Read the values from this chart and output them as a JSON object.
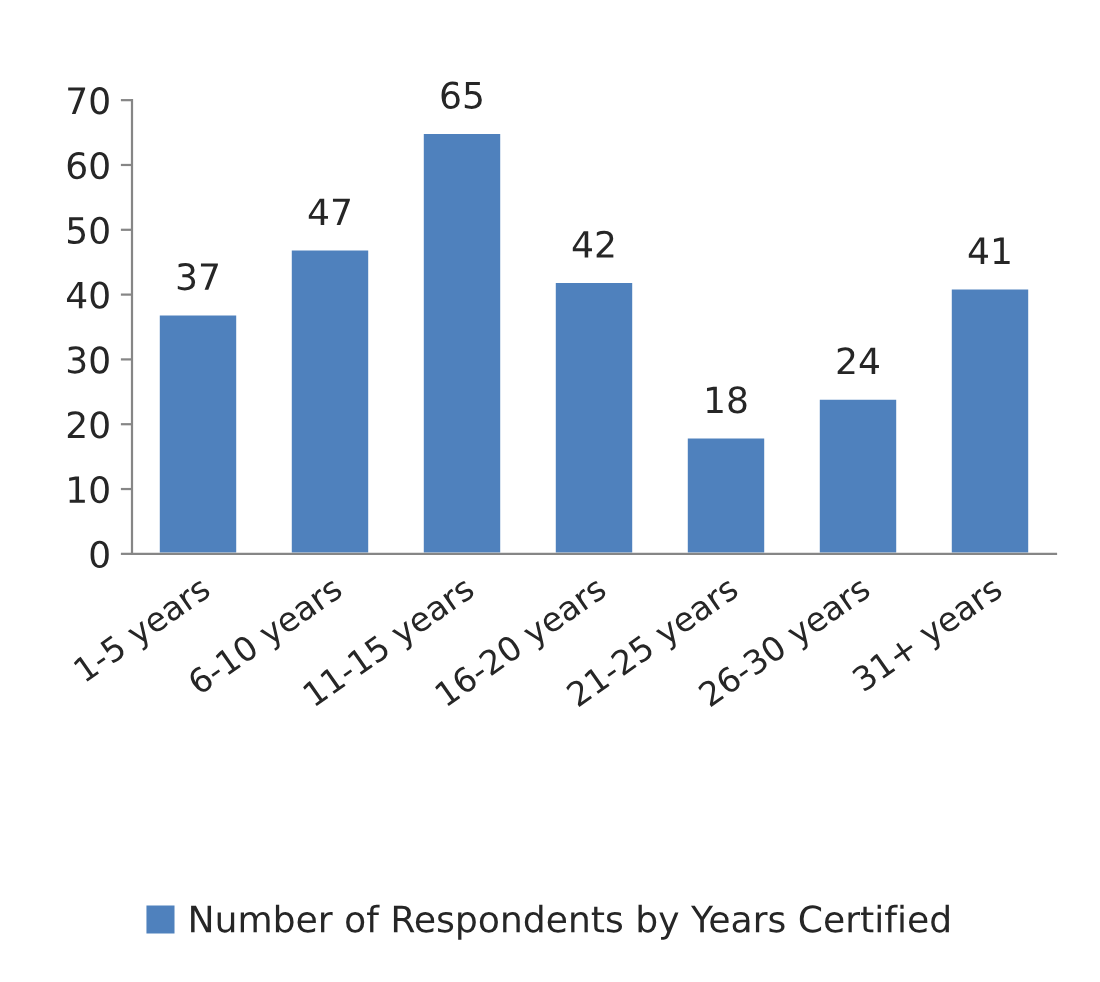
{
  "chart_data": {
    "type": "bar",
    "categories": [
      "1-5 years",
      "6-10 years",
      "11-15 years",
      "16-20 years",
      "21-25 years",
      "26-30 years",
      "31+ years"
    ],
    "series": [
      {
        "name": "Number of Respondents by Years Certified",
        "color": "#4f81bd",
        "values": [
          37,
          47,
          65,
          42,
          18,
          24,
          41
        ]
      }
    ],
    "ylim": [
      0,
      70
    ],
    "yticks": [
      0,
      10,
      20,
      30,
      40,
      50,
      60,
      70
    ],
    "data_labels": true,
    "grid": false,
    "legend": "bottom"
  }
}
